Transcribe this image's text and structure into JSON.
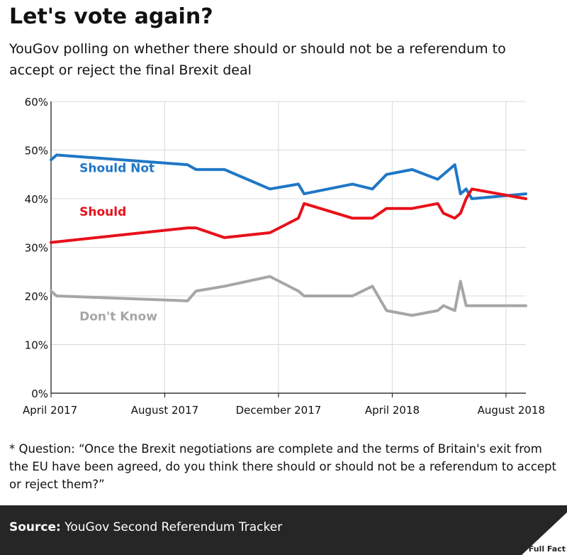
{
  "header": {
    "title": "Let's vote again?",
    "subtitle": "YouGov polling on whether there should or should not be a referendum to accept or reject the final Brexit deal"
  },
  "chart_data": {
    "type": "line",
    "title": "Let's vote again?",
    "xlabel": "",
    "ylabel": "",
    "ylim": [
      0,
      60
    ],
    "yticks": [
      "0%",
      "10%",
      "20%",
      "30%",
      "40%",
      "50%",
      "60%"
    ],
    "xlim": [
      0,
      16.7
    ],
    "xticks": [
      {
        "label": "April 2017",
        "x": 0
      },
      {
        "label": "August 2017",
        "x": 4
      },
      {
        "label": "December 2017",
        "x": 8
      },
      {
        "label": "April 2018",
        "x": 12
      },
      {
        "label": "August 2018",
        "x": 16
      }
    ],
    "grid": true,
    "series": [
      {
        "name": "Should Not",
        "label": "Should Not",
        "color": "#1f77c6",
        "x": [
          0,
          0.2,
          4.8,
          5.1,
          6.1,
          7.7,
          8.7,
          8.9,
          10.6,
          11.3,
          11.8,
          12.7,
          13.6,
          14.2,
          14.4,
          14.6,
          14.8,
          16.7
        ],
        "y": [
          48,
          49,
          47,
          46,
          46,
          42,
          43,
          41,
          43,
          42,
          45,
          46,
          44,
          47,
          41,
          42,
          40,
          41
        ]
      },
      {
        "name": "Should",
        "label": "Should",
        "color": "#e8101a",
        "x": [
          0,
          4.8,
          5.1,
          6.1,
          7.7,
          8.7,
          8.9,
          10.6,
          11.3,
          11.8,
          12.7,
          13.6,
          13.8,
          14.2,
          14.4,
          14.6,
          14.8,
          16.7
        ],
        "y": [
          31,
          34,
          34,
          32,
          33,
          36,
          39,
          36,
          36,
          38,
          38,
          39,
          37,
          36,
          37,
          40,
          42,
          40
        ]
      },
      {
        "name": "Don't Know",
        "label": "Don't Know",
        "color": "#a6a6a6",
        "x": [
          0,
          0.2,
          4.8,
          5.1,
          6.1,
          7.7,
          8.7,
          8.9,
          10.6,
          11.3,
          11.8,
          12.7,
          13.6,
          13.8,
          14.2,
          14.4,
          14.6,
          16.7
        ],
        "y": [
          21,
          20,
          19,
          21,
          22,
          24,
          21,
          20,
          20,
          22,
          17,
          16,
          17,
          18,
          17,
          23,
          18,
          18
        ]
      }
    ]
  },
  "footnote": "* Question: “Once the Brexit negotiations are complete and the terms of Britain's exit from the EU have been agreed, do you think there should or should not be a referendum to accept or reject them?”",
  "footer": {
    "source_label": "Source:",
    "source_text": "YouGov Second Referendum Tracker",
    "logo_text": "Full Fact"
  },
  "colors": {
    "footer_bg": "#262626",
    "grid": "#d9d9d9"
  }
}
